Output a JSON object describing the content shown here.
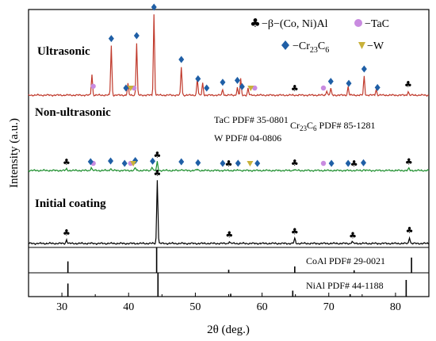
{
  "chart_data": {
    "type": "line",
    "title": "",
    "xlabel": "2θ (deg.)",
    "ylabel": "Intensity (a.u.)",
    "xlim": [
      25,
      85
    ],
    "xticks": [
      30,
      40,
      50,
      60,
      70,
      80
    ],
    "grid": false,
    "legend": {
      "position": "top-right",
      "entries": [
        {
          "symbol": "♣",
          "label": "−β−(Co, Ni)Al",
          "color": "#000000"
        },
        {
          "symbol": "●",
          "label": "−TaC",
          "color": "#c98be0"
        },
        {
          "symbol": "◆",
          "label": "−Cr23C6",
          "color": "#1f5fa6"
        },
        {
          "symbol": "♥",
          "label": "−W",
          "color": "#c8b13a"
        }
      ]
    },
    "series": [
      {
        "name": "Ultrasonic",
        "color": "#c0392b",
        "peaks": [
          {
            "x": 34.5,
            "height": 0.22
          },
          {
            "x": 37.4,
            "height": 0.52
          },
          {
            "x": 39.9,
            "height": 0.12
          },
          {
            "x": 41.2,
            "height": 0.55
          },
          {
            "x": 43.8,
            "height": 0.85
          },
          {
            "x": 47.9,
            "height": 0.3
          },
          {
            "x": 50.3,
            "height": 0.18
          },
          {
            "x": 51.1,
            "height": 0.13
          },
          {
            "x": 54.1,
            "height": 0.06
          },
          {
            "x": 56.3,
            "height": 0.08
          },
          {
            "x": 56.8,
            "height": 0.17
          },
          {
            "x": 57.9,
            "height": 0.07
          },
          {
            "x": 69.7,
            "height": 0.05
          },
          {
            "x": 70.3,
            "height": 0.07
          },
          {
            "x": 72.9,
            "height": 0.09
          },
          {
            "x": 75.3,
            "height": 0.2
          },
          {
            "x": 77.1,
            "height": 0.06
          },
          {
            "x": 81.9,
            "height": 0.04
          }
        ]
      },
      {
        "name": "Non-ultrasonic",
        "color": "#1e8f2e",
        "peaks": [
          {
            "x": 30.7,
            "height": 0.04
          },
          {
            "x": 34.4,
            "height": 0.08
          },
          {
            "x": 37.3,
            "height": 0.06
          },
          {
            "x": 41.0,
            "height": 0.07
          },
          {
            "x": 43.5,
            "height": 0.1
          },
          {
            "x": 44.3,
            "height": 0.22
          },
          {
            "x": 47.9,
            "height": 0.04
          },
          {
            "x": 50.3,
            "height": 0.03
          },
          {
            "x": 56.6,
            "height": 0.02
          },
          {
            "x": 64.8,
            "height": 0.03
          },
          {
            "x": 75.3,
            "height": 0.03
          },
          {
            "x": 82.0,
            "height": 0.05
          }
        ]
      },
      {
        "name": "Initial coating",
        "color": "#000000",
        "peaks": [
          {
            "x": 30.7,
            "height": 0.06
          },
          {
            "x": 44.3,
            "height": 1.0
          },
          {
            "x": 55.1,
            "height": 0.03
          },
          {
            "x": 64.9,
            "height": 0.08
          },
          {
            "x": 73.5,
            "height": 0.03
          },
          {
            "x": 82.1,
            "height": 0.1
          }
        ]
      }
    ],
    "markers": [
      {
        "trace": "Ultrasonic",
        "symbol": "♣",
        "color": "#000000",
        "positions": [
          64.9,
          81.9
        ]
      },
      {
        "trace": "Ultrasonic",
        "symbol": "●",
        "color": "#c98be0",
        "positions": [
          34.7,
          40.8,
          58.9,
          69.2
        ]
      },
      {
        "trace": "Ultrasonic",
        "symbol": "◆",
        "color": "#1f5fa6",
        "positions": [
          37.4,
          39.6,
          41.2,
          43.8,
          47.9,
          50.4,
          51.7,
          54.1,
          56.3,
          57.0,
          70.3,
          73.0,
          75.3,
          77.3
        ]
      },
      {
        "trace": "Ultrasonic",
        "symbol": "♥",
        "color": "#c8b13a",
        "positions": [
          40.3,
          58.3
        ]
      },
      {
        "trace": "Non-ultrasonic",
        "symbol": "♣",
        "color": "#000000",
        "positions": [
          30.7,
          44.3,
          55.0,
          64.9,
          73.8,
          82.0
        ]
      },
      {
        "trace": "Non-ultrasonic",
        "symbol": "●",
        "color": "#c98be0",
        "positions": [
          34.7,
          40.3,
          69.2
        ]
      },
      {
        "trace": "Non-ultrasonic",
        "symbol": "◆",
        "color": "#1f5fa6",
        "positions": [
          34.3,
          37.3,
          39.4,
          41.0,
          43.6,
          47.9,
          50.4,
          54.1,
          56.4,
          59.3,
          70.4,
          72.9,
          75.2
        ]
      },
      {
        "trace": "Non-ultrasonic",
        "symbol": "♥",
        "color": "#c8b13a",
        "positions": [
          40.7,
          58.2
        ]
      },
      {
        "trace": "Initial coating",
        "symbol": "♣",
        "color": "#000000",
        "positions": [
          30.7,
          44.3,
          55.1,
          64.9,
          73.6,
          82.1
        ]
      }
    ],
    "reference_patterns": [
      {
        "label": "CoAl PDF# 29-0021",
        "lines": [
          {
            "x": 30.9,
            "height": 0.45
          },
          {
            "x": 44.2,
            "height": 1.0
          },
          {
            "x": 55.0,
            "height": 0.12
          },
          {
            "x": 64.9,
            "height": 0.25
          },
          {
            "x": 73.8,
            "height": 0.1
          },
          {
            "x": 82.4,
            "height": 0.6
          }
        ]
      },
      {
        "label": "NiAl PDF# 44-1188",
        "lines": [
          {
            "x": 30.9,
            "height": 0.55
          },
          {
            "x": 44.4,
            "height": 1.0
          },
          {
            "x": 55.3,
            "height": 0.12
          },
          {
            "x": 64.6,
            "height": 0.25
          },
          {
            "x": 73.2,
            "height": 0.1
          },
          {
            "x": 81.6,
            "height": 0.7
          }
        ]
      }
    ],
    "annotations": [
      {
        "text": "Ultrasonic",
        "trace": "Ultrasonic"
      },
      {
        "text": "Non-ultrasonic",
        "trace": "Non-ultrasonic"
      },
      {
        "text": "Initial coating",
        "trace": "Initial coating"
      },
      {
        "text": "TaC PDF# 35-0801"
      },
      {
        "text": "W PDF# 04-0806"
      },
      {
        "text": "Cr23C6 PDF# 85-1281"
      }
    ]
  }
}
